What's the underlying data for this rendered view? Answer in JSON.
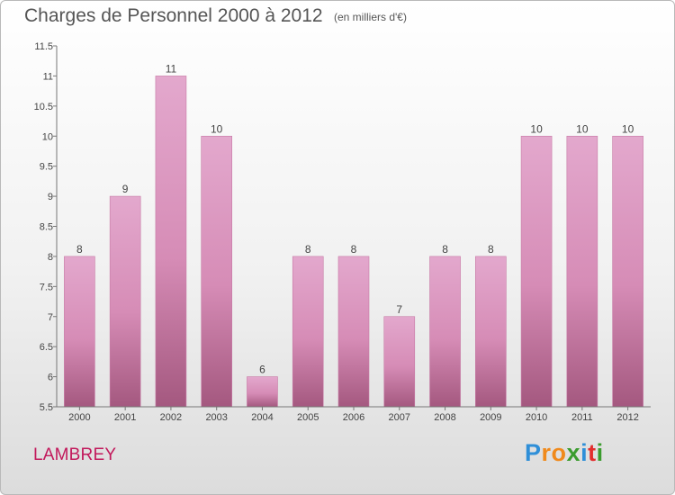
{
  "header": {
    "title": "Charges de Personnel 2000 à 2012",
    "unit": "(en milliers d'€)"
  },
  "footer": {
    "commune": "LAMBREY",
    "logo_letters": [
      "P",
      "r",
      "o",
      "x",
      "i",
      "t",
      "i"
    ],
    "logo_colors": [
      "#2f8fd8",
      "#f08a1c",
      "#f08a1c",
      "#3b9c2e",
      "#2f8fd8",
      "#e22d2d",
      "#3b9c2e"
    ]
  },
  "chart_data": {
    "type": "bar",
    "categories": [
      "2000",
      "2001",
      "2002",
      "2003",
      "2004",
      "2005",
      "2006",
      "2007",
      "2008",
      "2009",
      "2010",
      "2011",
      "2012"
    ],
    "values": [
      8,
      9,
      11,
      10,
      6,
      8,
      8,
      7,
      8,
      8,
      10,
      10,
      10
    ],
    "data_labels": [
      "8",
      "9",
      "11",
      "10",
      "6",
      "8",
      "8",
      "7",
      "8",
      "8",
      "10",
      "10",
      "10"
    ],
    "title": "Charges de Personnel 2000 à 2012",
    "ylim": [
      5.5,
      11.5
    ],
    "yticks": [
      "5.5",
      "6",
      "6.5",
      "7",
      "7.5",
      "8",
      "8.5",
      "9",
      "9.5",
      "10",
      "10.5",
      "11",
      "11.5"
    ],
    "grid": false,
    "colors": {
      "bar": "#d68cb6",
      "bar_light": "#e3a8cd",
      "bar_dark": "#a4587f",
      "axis": "#777777"
    }
  }
}
